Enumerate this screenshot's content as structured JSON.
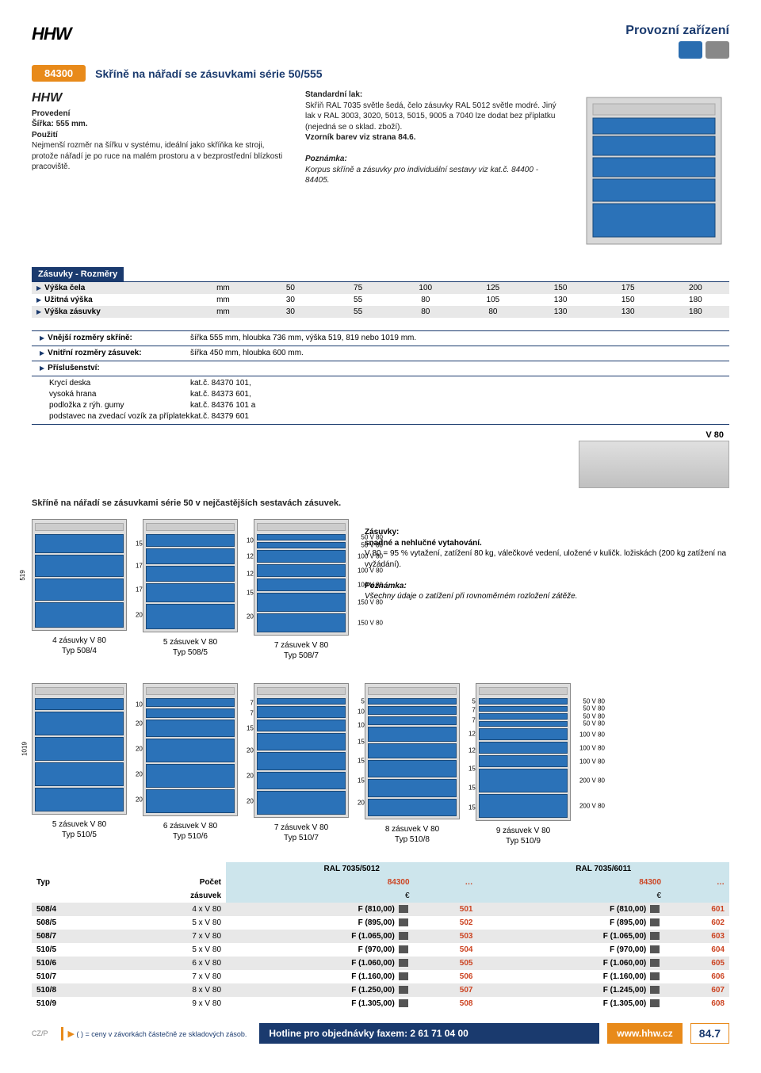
{
  "header": {
    "logo": "HHW",
    "title": "Provozní zařízení",
    "article_code": "84300",
    "section_title": "Skříně na nářadí se zásuvkami série 50/555"
  },
  "intro": {
    "col1_title": "Provedení",
    "col1_sub": "Šířka: 555 mm.",
    "col1_head2": "Použití",
    "col1_text": "Nejmenší rozměr na šířku v systému, ideální jako skříňka ke stroji, protože nářadí je po ruce na malém prostoru a v bezprostřední blízkosti pracoviště.",
    "col2_head": "Standardní lak:",
    "col2_text": "Skříň RAL 7035 světle šedá, čelo zásuvky RAL 5012 světle modré. Jiný lak v RAL 3003, 3020, 5013, 5015, 9005 a 7040 lze dodat bez příplatku (nejedná se o sklad. zboží).",
    "col2_bold": "Vzorník barev viz strana 84.6.",
    "col2_note_head": "Poznámka:",
    "col2_note": "Korpus skříně a zásuvky pro individuální sestavy viz kat.č. 84400 - 84405."
  },
  "spec_header": "Zásuvky - Rozměry",
  "spec_rows": [
    {
      "label": "Výška čela",
      "unit": "mm",
      "vals": [
        "50",
        "75",
        "100",
        "125",
        "150",
        "175",
        "200"
      ]
    },
    {
      "label": "Užitná výška",
      "unit": "mm",
      "vals": [
        "30",
        "55",
        "80",
        "105",
        "130",
        "150",
        "180"
      ]
    },
    {
      "label": "Výška zásuvky",
      "unit": "mm",
      "vals": [
        "30",
        "55",
        "80",
        "80",
        "130",
        "130",
        "180"
      ]
    }
  ],
  "details": [
    {
      "lbl": "Vnější rozměry skříně:",
      "val": "šířka 555 mm, hloubka 736 mm, výška 519, 819 nebo 1019 mm."
    },
    {
      "lbl": "Vnitřní rozměry zásuvek:",
      "val": "šířka 450 mm, hloubka 600 mm."
    },
    {
      "lbl": "Příslušenství:",
      "val": ""
    }
  ],
  "accessories": [
    {
      "lbl": "Krycí deska",
      "val": "kat.č. 84370 101,"
    },
    {
      "lbl": "vysoká hrana",
      "val": "kat.č. 84373 601,"
    },
    {
      "lbl": "podložka z rýh. gumy",
      "val": "kat.č. 84376 101 a"
    },
    {
      "lbl": "podstavec na zvedací vozík za příplatek",
      "val": "kat.č. 84379 601"
    }
  ],
  "subhead": "Skříně na nářadí se zásuvkami série 50 v nejčastějších sestavách zásuvek.",
  "cabinets_row1": [
    {
      "caption1": "4 zásuvky V 80",
      "caption2": "Typ 508/4",
      "height": "519",
      "drawers": [
        150,
        175,
        175,
        200
      ]
    },
    {
      "caption1": "5 zásuvek V 80",
      "caption2": "Typ 508/5",
      "drawers": [
        100,
        125,
        125,
        150,
        200
      ]
    },
    {
      "caption1": "7 zásuvek V 80",
      "caption2": "Typ 508/7",
      "drawers": [
        50,
        50,
        100,
        100,
        100,
        150,
        150
      ]
    }
  ],
  "right_text": {
    "head": "Zásuvky:",
    "sub": "snadné a nehlučné vytahování.",
    "body": "V 80 = 95 % vytažení, zatížení 80 kg, válečkové vedení, uložené v kuličk. ložiskách (200 kg zatížení na vyžádání).",
    "note_head": "Poznámka:",
    "note": "Všechny údaje o zatížení při rovnoměrném rozložení zátěže."
  },
  "cabinets_row2": [
    {
      "caption1": "5 zásuvek V 80",
      "caption2": "Typ 510/5",
      "height": "1019",
      "drawers": [
        100,
        200,
        200,
        200,
        200
      ]
    },
    {
      "caption1": "6 zásuvek V 80",
      "caption2": "Typ 510/6",
      "drawers": [
        75,
        75,
        150,
        200,
        200,
        200
      ]
    },
    {
      "caption1": "7 zásuvek V 80",
      "caption2": "Typ 510/7",
      "drawers": [
        50,
        100,
        100,
        150,
        150,
        150,
        200
      ]
    },
    {
      "caption1": "8 zásuvek V 80",
      "caption2": "Typ 510/8",
      "drawers": [
        50,
        75,
        75,
        125,
        125,
        150,
        150,
        150
      ]
    },
    {
      "caption1": "9 zásuvek V 80",
      "caption2": "Typ 510/9",
      "drawers": [
        50,
        50,
        50,
        50,
        100,
        100,
        100,
        200,
        200
      ]
    }
  ],
  "price_hdr": {
    "c1": "RAL 7035/5012",
    "c2": "RAL 7035/6011",
    "code": "84300",
    "unit": "€",
    "dots": "…",
    "typ": "Typ",
    "count": "Počet",
    "count2": "zásuvek"
  },
  "price_rows": [
    {
      "typ": "508/4",
      "count": "4 x V 80",
      "p1": "F (810,00)",
      "c1": "501",
      "p2": "F (810,00)",
      "c2": "601"
    },
    {
      "typ": "508/5",
      "count": "5 x V 80",
      "p1": "F (895,00)",
      "c1": "502",
      "p2": "F (895,00)",
      "c2": "602"
    },
    {
      "typ": "508/7",
      "count": "7 x V 80",
      "p1": "F (1.065,00)",
      "c1": "503",
      "p2": "F (1.065,00)",
      "c2": "603"
    },
    {
      "typ": "510/5",
      "count": "5 x V 80",
      "p1": "F (970,00)",
      "c1": "504",
      "p2": "F (970,00)",
      "c2": "604"
    },
    {
      "typ": "510/6",
      "count": "6 x V 80",
      "p1": "F (1.060,00)",
      "c1": "505",
      "p2": "F (1.060,00)",
      "c2": "605"
    },
    {
      "typ": "510/7",
      "count": "7 x V 80",
      "p1": "F (1.160,00)",
      "c1": "506",
      "p2": "F (1.160,00)",
      "c2": "606"
    },
    {
      "typ": "510/8",
      "count": "8 x V 80",
      "p1": "F (1.250,00)",
      "c1": "507",
      "p2": "F (1.245,00)",
      "c2": "607"
    },
    {
      "typ": "510/9",
      "count": "9 x V 80",
      "p1": "F (1.305,00)",
      "c1": "508",
      "p2": "F (1.305,00)",
      "c2": "608"
    }
  ],
  "footer": {
    "note": "( ) = ceny v závorkách částečně ze skladových zásob.",
    "hotline": "Hotline pro objednávky faxem: 2 61 71 04 00",
    "url": "www.hhw.cz",
    "page": "84.7",
    "czp": "CZ/P",
    "tab": "8"
  },
  "colors": {
    "orange": "#e88a1a",
    "navy": "#1a3a6e",
    "blue_drawer": "#2b72b8",
    "cyan_row": "#cde5ec",
    "grey_row": "#e8e8e8"
  }
}
